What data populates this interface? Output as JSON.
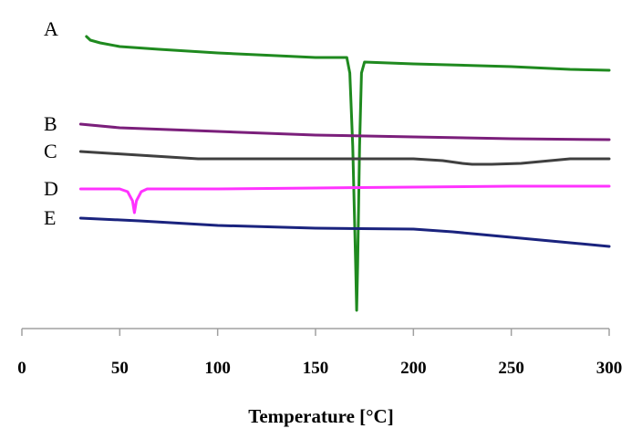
{
  "chart_data": {
    "type": "line",
    "title": "",
    "xlabel": "Temperature [°C]",
    "ylabel": "",
    "xlim": [
      0,
      300
    ],
    "ylim": [
      0,
      340
    ],
    "grid": false,
    "x_ticks": [
      0,
      50,
      100,
      150,
      200,
      250,
      300
    ],
    "series": [
      {
        "name": "A",
        "color": "#1f8a1f",
        "points": [
          [
            33,
            320
          ],
          [
            35,
            316
          ],
          [
            40,
            313
          ],
          [
            50,
            309
          ],
          [
            70,
            306
          ],
          [
            100,
            302
          ],
          [
            130,
            299
          ],
          [
            150,
            297
          ],
          [
            166,
            297
          ],
          [
            167.5,
            280
          ],
          [
            169,
            200
          ],
          [
            170.5,
            70
          ],
          [
            171,
            20
          ],
          [
            171.5,
            70
          ],
          [
            172.5,
            200
          ],
          [
            173.5,
            280
          ],
          [
            175,
            292
          ],
          [
            200,
            290
          ],
          [
            250,
            287
          ],
          [
            280,
            284
          ],
          [
            300,
            283
          ]
        ]
      },
      {
        "name": "B",
        "color": "#7b1f7b",
        "points": [
          [
            30,
            224
          ],
          [
            50,
            220
          ],
          [
            100,
            216
          ],
          [
            150,
            212
          ],
          [
            200,
            210
          ],
          [
            250,
            208
          ],
          [
            300,
            207
          ]
        ]
      },
      {
        "name": "C",
        "color": "#404040",
        "points": [
          [
            30,
            194
          ],
          [
            60,
            190
          ],
          [
            90,
            186
          ],
          [
            150,
            186
          ],
          [
            200,
            186
          ],
          [
            215,
            184
          ],
          [
            225,
            181
          ],
          [
            230,
            180
          ],
          [
            240,
            180
          ],
          [
            255,
            181
          ],
          [
            270,
            184
          ],
          [
            280,
            186
          ],
          [
            300,
            186
          ]
        ]
      },
      {
        "name": "D",
        "color": "#ff33ff",
        "points": [
          [
            30,
            153
          ],
          [
            50,
            153
          ],
          [
            54,
            150
          ],
          [
            56.5,
            140
          ],
          [
            57.5,
            127
          ],
          [
            58.5,
            140
          ],
          [
            61,
            150
          ],
          [
            64,
            153
          ],
          [
            100,
            153
          ],
          [
            150,
            154
          ],
          [
            200,
            155
          ],
          [
            250,
            156
          ],
          [
            300,
            156
          ]
        ]
      },
      {
        "name": "E",
        "color": "#1a237e",
        "points": [
          [
            30,
            121
          ],
          [
            60,
            118
          ],
          [
            100,
            113
          ],
          [
            150,
            110
          ],
          [
            200,
            109
          ],
          [
            220,
            106
          ],
          [
            250,
            100
          ],
          [
            280,
            94
          ],
          [
            300,
            90
          ]
        ]
      }
    ]
  }
}
